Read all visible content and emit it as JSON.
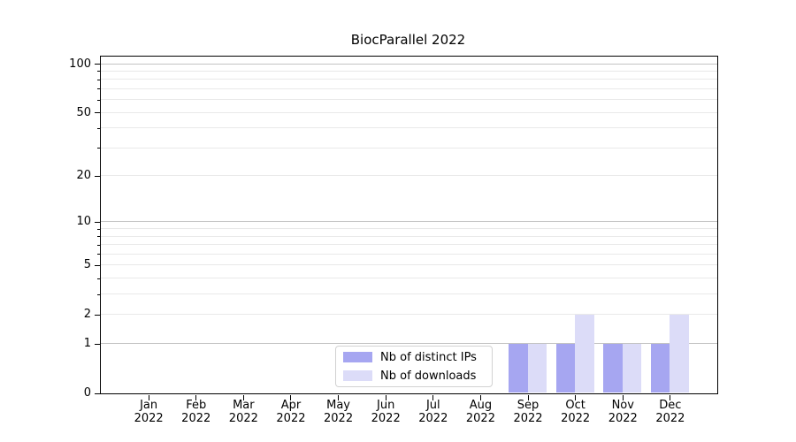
{
  "title": "BiocParallel 2022",
  "chart_data": {
    "type": "bar",
    "title": "BiocParallel 2022",
    "categories": [
      "Jan",
      "Feb",
      "Mar",
      "Apr",
      "May",
      "Jun",
      "Jul",
      "Aug",
      "Sep",
      "Oct",
      "Nov",
      "Dec"
    ],
    "category_year": "2022",
    "series": [
      {
        "name": "Nb of distinct IPs",
        "color": "#a6a6f1",
        "values": [
          0,
          0,
          0,
          0,
          0,
          0,
          0,
          0,
          1,
          1,
          1,
          1
        ]
      },
      {
        "name": "Nb of downloads",
        "color": "#dcdcf8",
        "values": [
          0,
          0,
          0,
          0,
          0,
          0,
          0,
          0,
          1,
          2,
          1,
          2
        ]
      }
    ],
    "xlabel": "",
    "ylabel": "",
    "y_axis": {
      "scale": "log1p",
      "max": 100,
      "ticks": [
        0,
        1,
        2,
        5,
        10,
        20,
        50,
        100
      ]
    },
    "grid": {
      "major": [
        1,
        10,
        100
      ],
      "minor": [
        2,
        3,
        4,
        5,
        6,
        7,
        8,
        9,
        20,
        30,
        40,
        50,
        60,
        70,
        80,
        90
      ]
    },
    "legend": {
      "position": "bottom-center"
    },
    "colors": {
      "major_grid": "#c3c3c3",
      "minor_grid": "#e9e9e9",
      "axis": "#000000"
    }
  }
}
